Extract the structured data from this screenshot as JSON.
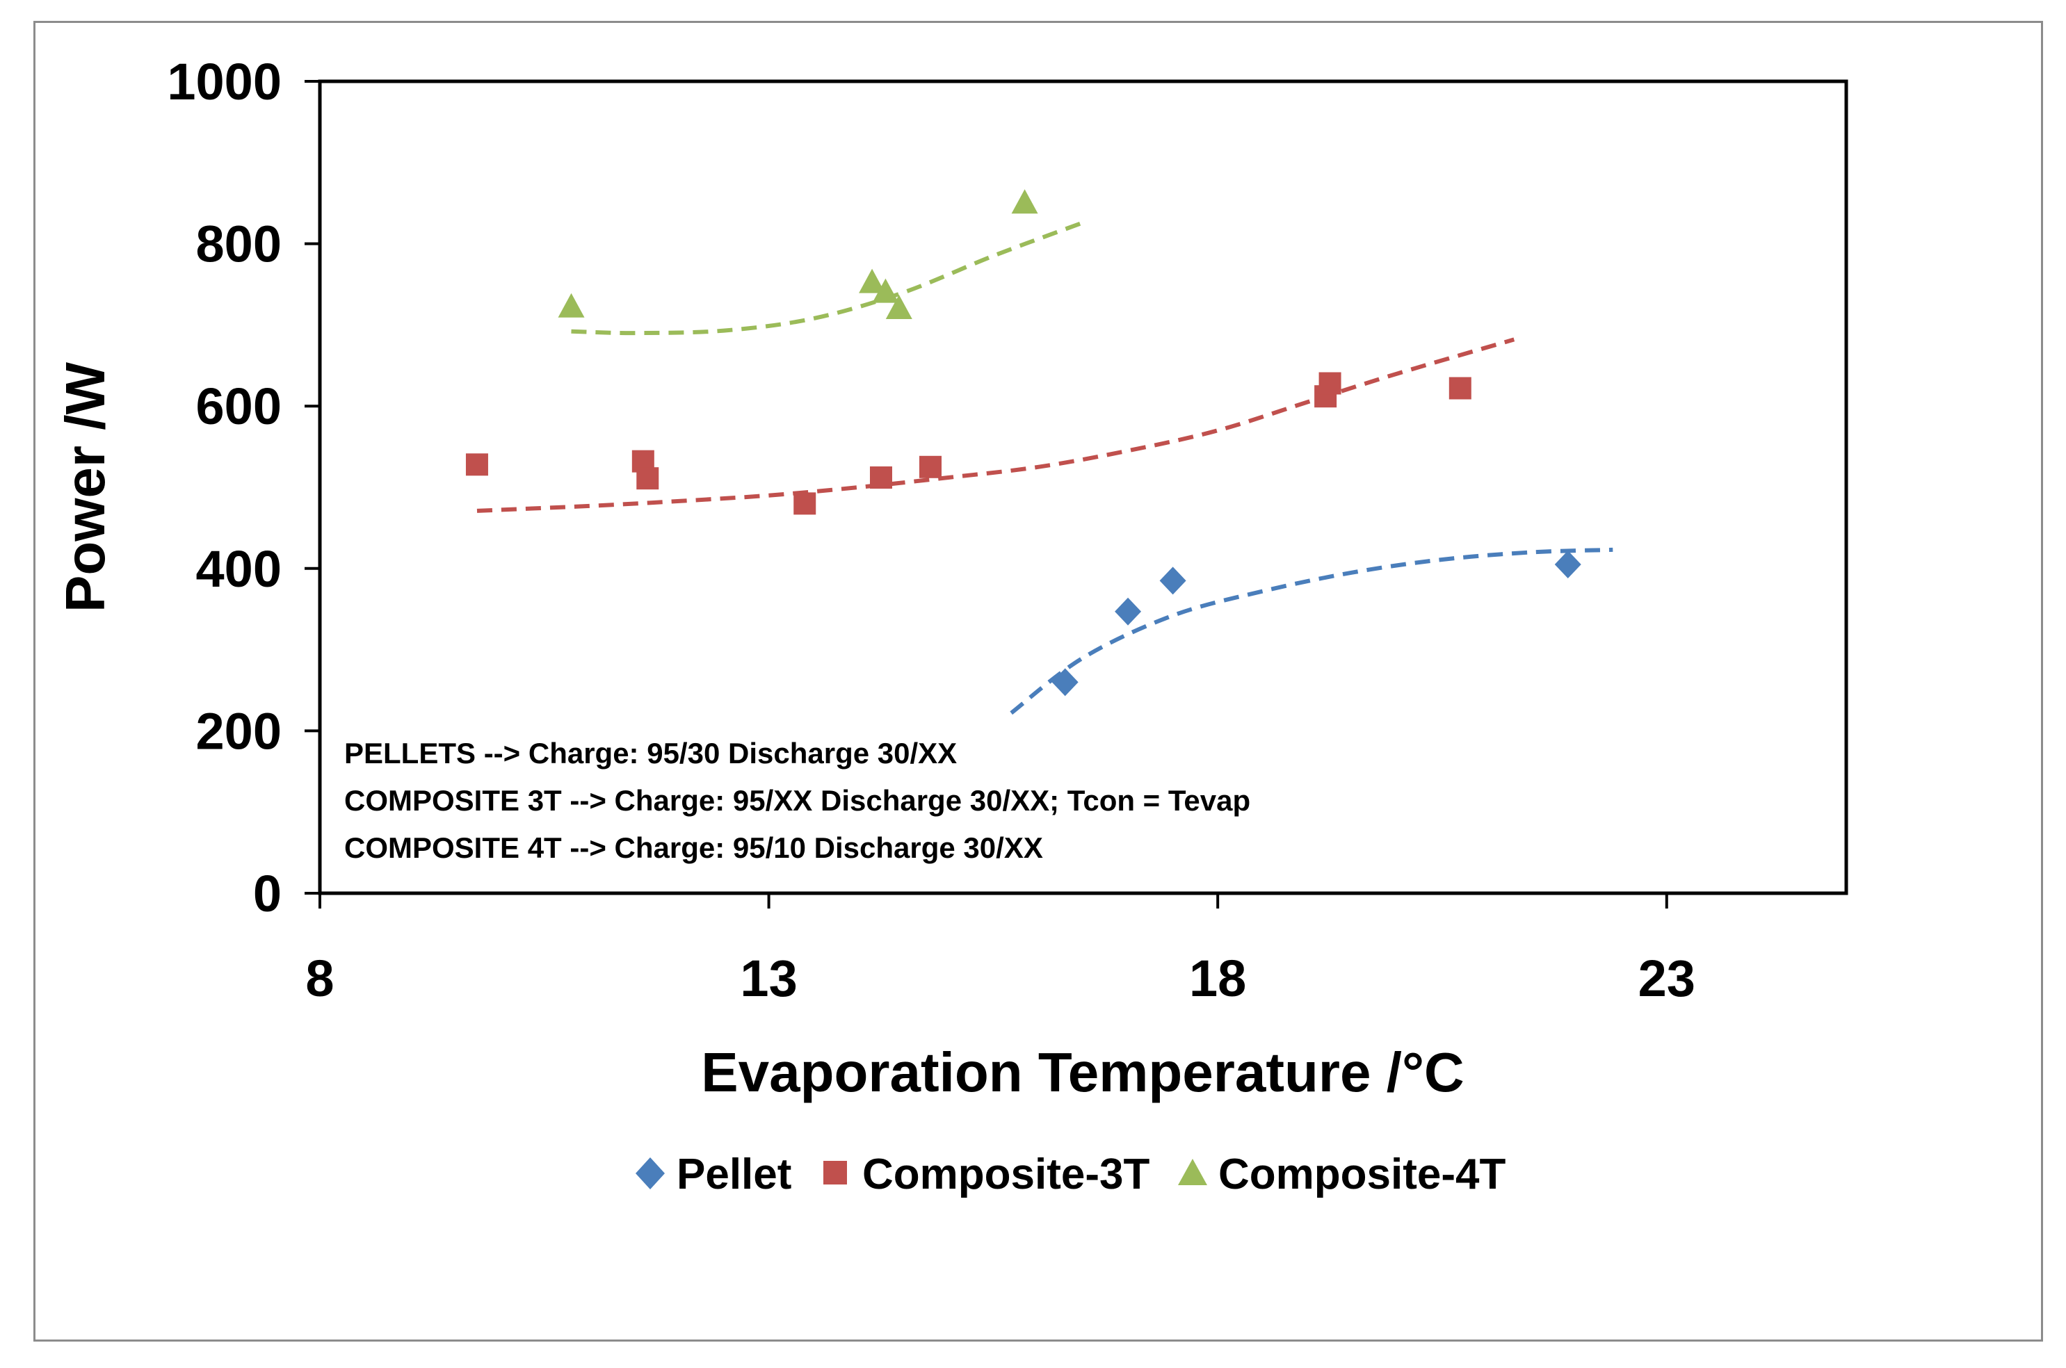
{
  "chart_data": {
    "type": "scatter",
    "title": "",
    "xlabel": "Evaporation Temperature /°C",
    "ylabel": "Power /W",
    "xlim": [
      8,
      25
    ],
    "ylim": [
      0,
      1000
    ],
    "xticks": [
      8,
      13,
      18,
      23
    ],
    "yticks": [
      0,
      200,
      400,
      600,
      800,
      1000
    ],
    "xtick_labels": [
      "8",
      "13",
      "18",
      "23"
    ],
    "ytick_labels": [
      "0",
      "200",
      "400",
      "600",
      "800",
      "1000"
    ],
    "grid": false,
    "legend_position": "bottom",
    "series": [
      {
        "name": "Pellet",
        "marker": "diamond",
        "color": "#4a7ebb",
        "points": [
          [
            16.3,
            260
          ],
          [
            17.0,
            347
          ],
          [
            17.5,
            385
          ],
          [
            21.9,
            405
          ]
        ],
        "trend": {
          "x_start": 15.7,
          "x_end": 22.4,
          "points": [
            [
              15.7,
              222
            ],
            [
              16.5,
              290
            ],
            [
              17.5,
              342
            ],
            [
              18.5,
              372
            ],
            [
              19.5,
              395
            ],
            [
              20.5,
              411
            ],
            [
              21.5,
              420
            ],
            [
              22.4,
              423
            ]
          ]
        }
      },
      {
        "name": "Composite-3T",
        "marker": "square",
        "color": "#c0504d",
        "points": [
          [
            9.75,
            528
          ],
          [
            11.6,
            532
          ],
          [
            11.65,
            511
          ],
          [
            13.4,
            480
          ],
          [
            14.25,
            512
          ],
          [
            14.8,
            525
          ],
          [
            19.2,
            612
          ],
          [
            19.25,
            628
          ],
          [
            20.7,
            622
          ]
        ],
        "trend": {
          "x_start": 9.75,
          "x_end": 21.3,
          "points": [
            [
              9.75,
              471
            ],
            [
              11,
              477
            ],
            [
              12,
              483
            ],
            [
              13,
              490
            ],
            [
              14,
              500
            ],
            [
              15,
              512
            ],
            [
              16,
              525
            ],
            [
              17,
              545
            ],
            [
              18,
              570
            ],
            [
              19,
              605
            ],
            [
              20,
              640
            ],
            [
              21.3,
              682
            ]
          ]
        }
      },
      {
        "name": "Composite-4T",
        "marker": "triangle",
        "color": "#9bbb59",
        "points": [
          [
            10.8,
            722
          ],
          [
            14.15,
            752
          ],
          [
            14.3,
            740
          ],
          [
            14.45,
            720
          ],
          [
            15.85,
            850
          ]
        ],
        "trend": {
          "x_start": 10.8,
          "x_end": 16.5,
          "points": [
            [
              10.8,
              692
            ],
            [
              11.5,
              690
            ],
            [
              12.5,
              693
            ],
            [
              13.5,
              708
            ],
            [
              14.5,
              740
            ],
            [
              15.5,
              785
            ],
            [
              16.5,
              826
            ]
          ]
        }
      }
    ],
    "annotations": [
      "PELLETS  --> Charge:  95/30 Discharge 30/XX",
      "COMPOSITE 3T --> Charge:  95/XX Discharge 30/XX; Tcon = Tevap",
      "COMPOSITE 4T --> Charge:  95/10 Discharge 30/XX"
    ]
  }
}
